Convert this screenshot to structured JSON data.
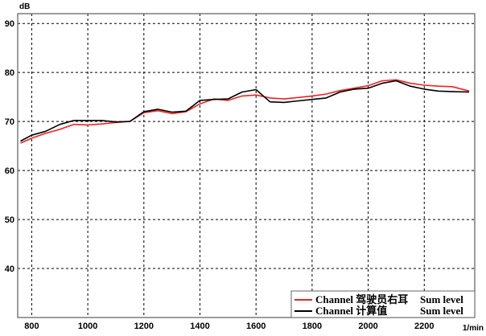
{
  "chart_data": {
    "type": "line",
    "ylabel": "dB",
    "xlabel": "1/min",
    "xlim": [
      750,
      2380
    ],
    "ylim": [
      30,
      92
    ],
    "xticks": [
      800,
      1000,
      1200,
      1400,
      1600,
      1800,
      2000,
      2200
    ],
    "yticks": [
      40,
      50,
      60,
      70,
      80,
      90
    ],
    "grid": true,
    "legend_position": "bottom-right",
    "series": [
      {
        "name": "Channel 驾驶员右耳",
        "suffix": "Sum level",
        "color": "#ee2222",
        "x": [
          760,
          800,
          850,
          900,
          950,
          1000,
          1050,
          1100,
          1150,
          1200,
          1250,
          1300,
          1350,
          1400,
          1450,
          1500,
          1550,
          1600,
          1650,
          1700,
          1750,
          1800,
          1850,
          1900,
          1950,
          2000,
          2050,
          2100,
          2150,
          2200,
          2250,
          2300,
          2360
        ],
        "y": [
          65.6,
          66.6,
          67.6,
          68.4,
          69.4,
          69.3,
          69.5,
          69.8,
          70.0,
          71.8,
          72.2,
          71.6,
          72.0,
          73.6,
          74.6,
          74.3,
          75.2,
          75.4,
          74.8,
          74.6,
          74.9,
          75.2,
          75.6,
          76.3,
          76.8,
          77.3,
          78.3,
          78.5,
          77.8,
          77.4,
          77.2,
          77.1,
          76.2
        ]
      },
      {
        "name": "Channel 计算值",
        "suffix": "Sum level",
        "color": "#000000",
        "x": [
          760,
          800,
          850,
          900,
          950,
          1000,
          1050,
          1100,
          1150,
          1200,
          1250,
          1300,
          1350,
          1400,
          1450,
          1500,
          1550,
          1600,
          1650,
          1700,
          1750,
          1800,
          1850,
          1900,
          1950,
          2000,
          2050,
          2100,
          2150,
          2200,
          2250,
          2300,
          2360
        ],
        "y": [
          66.0,
          67.2,
          68.0,
          69.4,
          70.2,
          70.2,
          70.2,
          69.9,
          70.0,
          72.0,
          72.5,
          71.9,
          72.1,
          74.3,
          74.5,
          74.6,
          76.0,
          76.5,
          74.0,
          73.9,
          74.2,
          74.5,
          74.8,
          76.0,
          76.6,
          76.8,
          77.8,
          78.3,
          77.2,
          76.6,
          76.2,
          76.1,
          76.0
        ]
      }
    ]
  }
}
